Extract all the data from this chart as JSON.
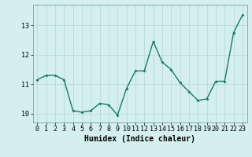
{
  "x": [
    0,
    1,
    2,
    3,
    4,
    5,
    6,
    7,
    8,
    9,
    10,
    11,
    12,
    13,
    14,
    15,
    16,
    17,
    18,
    19,
    20,
    21,
    22,
    23
  ],
  "y": [
    11.15,
    11.3,
    11.3,
    11.15,
    10.1,
    10.05,
    10.1,
    10.35,
    10.3,
    9.95,
    10.85,
    11.45,
    11.45,
    12.45,
    11.75,
    11.5,
    11.05,
    10.75,
    10.45,
    10.5,
    11.1,
    11.1,
    12.75,
    13.35
  ],
  "line_color": "#1a7a6a",
  "marker": "D",
  "marker_size": 1.5,
  "linewidth": 1.0,
  "xlabel": "Humidex (Indice chaleur)",
  "xlim": [
    -0.5,
    23.5
  ],
  "ylim": [
    9.7,
    13.7
  ],
  "yticks": [
    10,
    11,
    12,
    13
  ],
  "xtick_labels": [
    "0",
    "1",
    "2",
    "3",
    "4",
    "5",
    "6",
    "7",
    "8",
    "9",
    "10",
    "11",
    "12",
    "13",
    "14",
    "15",
    "16",
    "17",
    "18",
    "19",
    "20",
    "21",
    "22",
    "23"
  ],
  "bg_color": "#d4efec",
  "grid_color": "#b8dcd8",
  "xlabel_fontsize": 7,
  "tick_fontsize": 6,
  "ytick_fontsize": 6
}
